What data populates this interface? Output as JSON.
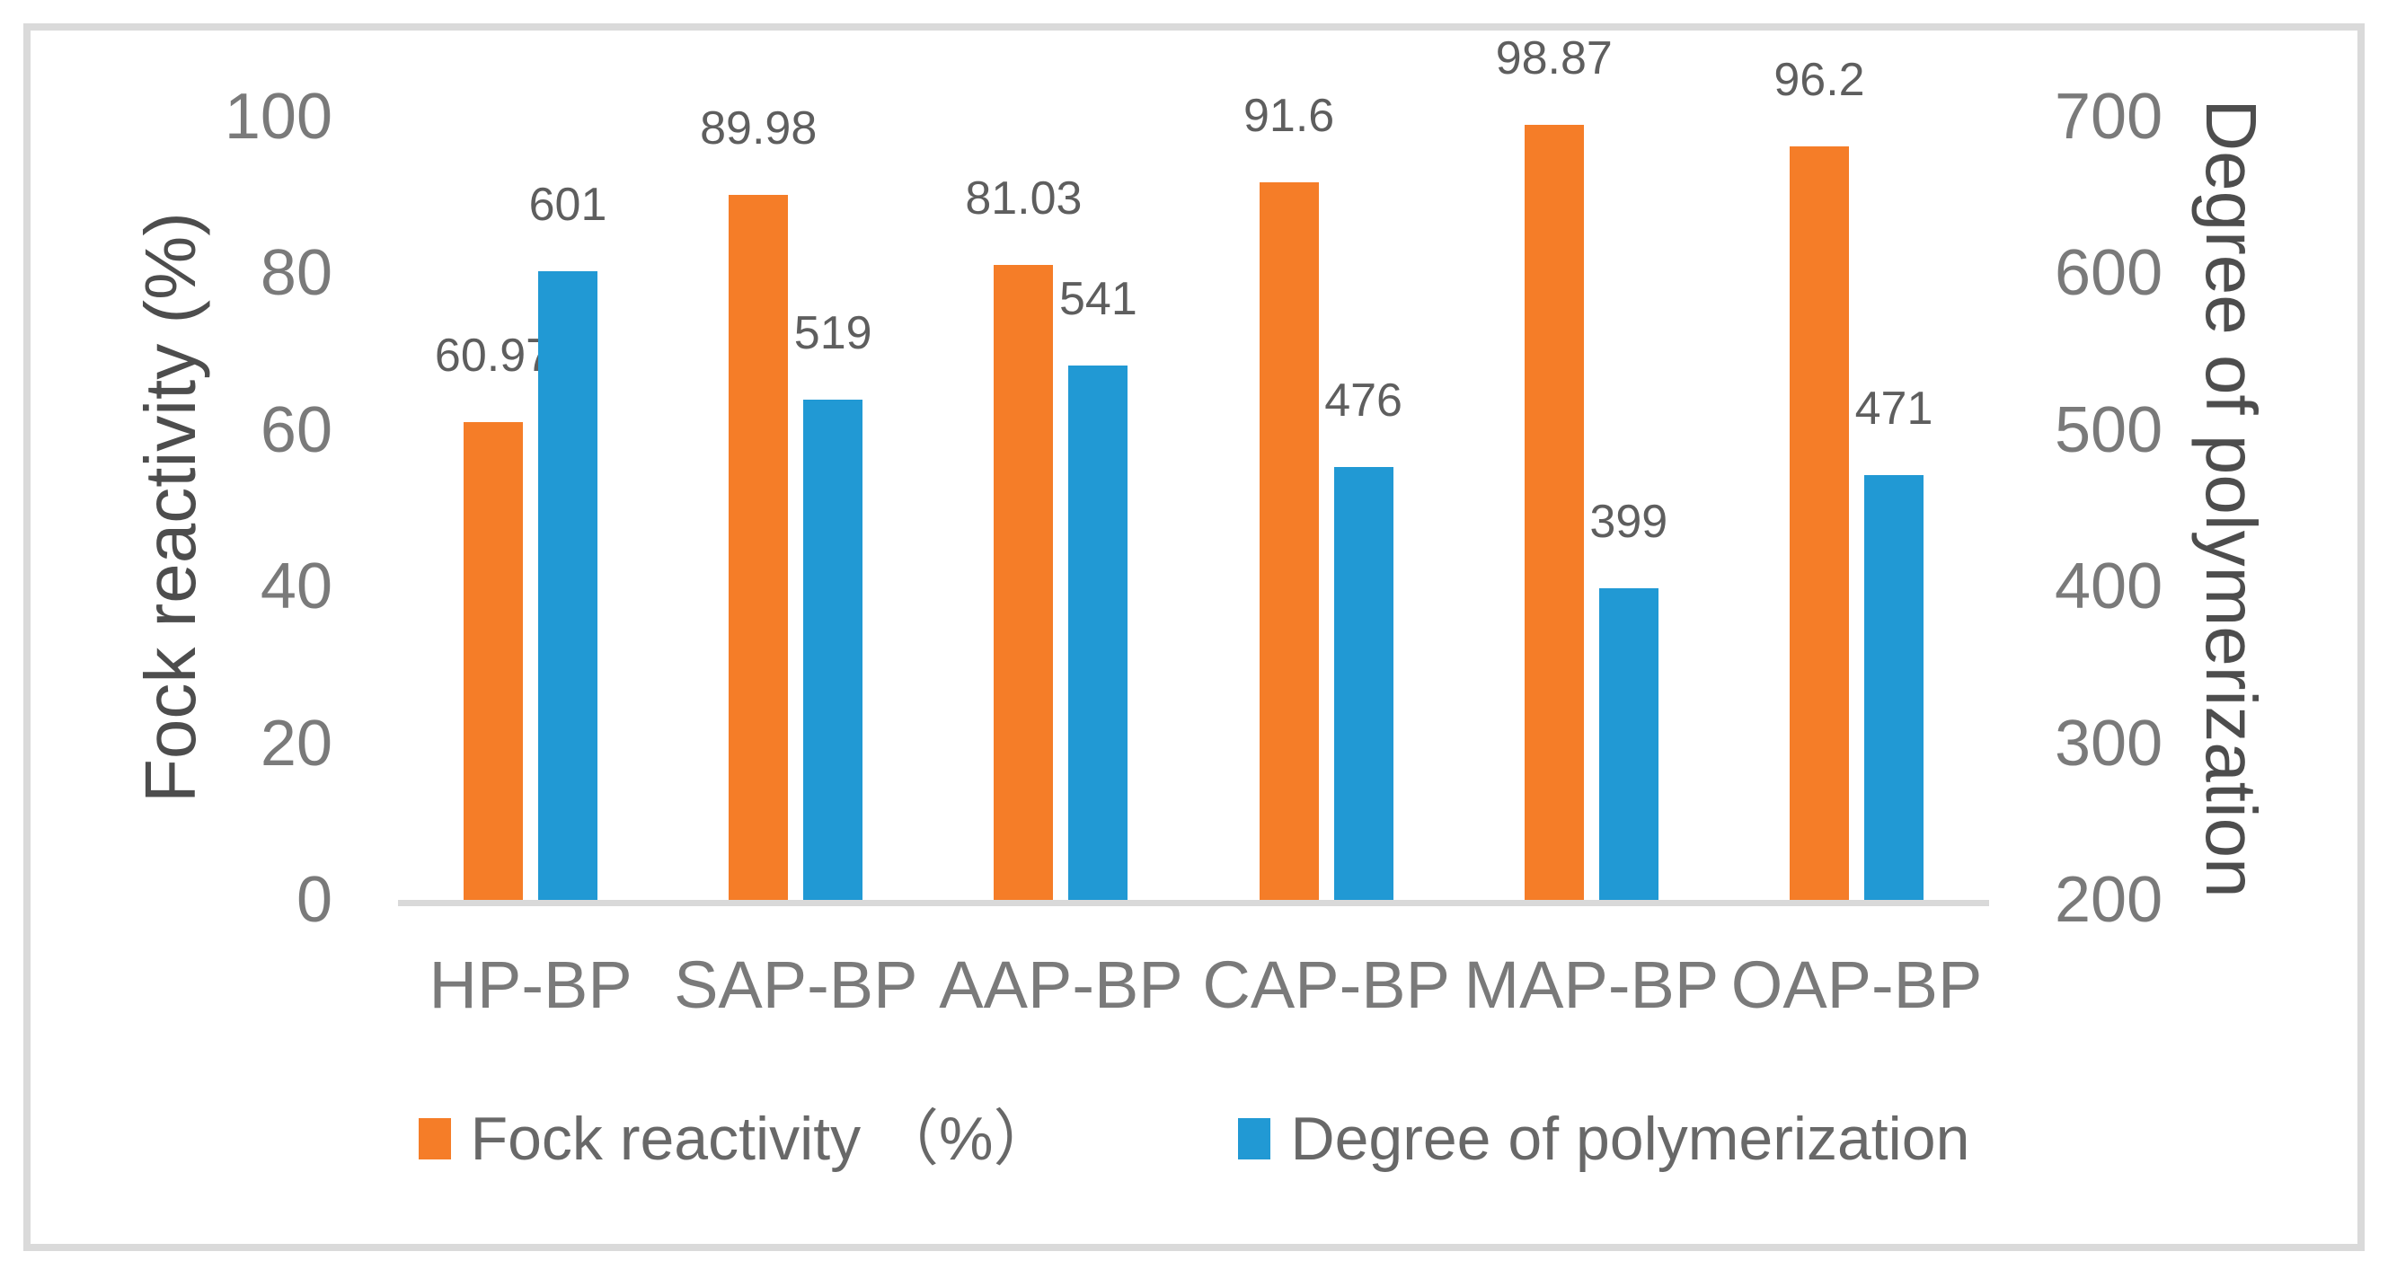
{
  "figure": {
    "background": "#ffffff",
    "border_color": "#DADADA",
    "axis_line_color": "#D9D9D9"
  },
  "chart_data": {
    "type": "bar",
    "title": "",
    "categories": [
      "HP-BP",
      "SAP-BP",
      "AAP-BP",
      "CAP-BP",
      "MAP-BP",
      "OAP-BP"
    ],
    "series": [
      {
        "name": "Fock reactivity （%）",
        "axis": "left",
        "color": "#F57D28",
        "values": [
          60.97,
          89.98,
          81.03,
          91.6,
          98.87,
          96.2
        ],
        "data_labels": [
          "60.97",
          "89.98",
          "81.03",
          "91.6",
          "98.87",
          "96.2"
        ]
      },
      {
        "name": "Degree of polymerization",
        "axis": "right",
        "color": "#2199D4",
        "values": [
          601,
          519,
          541,
          476,
          399,
          471
        ],
        "data_labels": [
          "601",
          "519",
          "541",
          "476",
          "399",
          "471"
        ]
      }
    ],
    "left_axis": {
      "title": "Fock reactivity (%)",
      "ticks": [
        0,
        20,
        40,
        60,
        80,
        100
      ],
      "range": [
        0,
        100
      ]
    },
    "right_axis": {
      "title": "Degree of polymerization",
      "ticks": [
        200,
        300,
        400,
        500,
        600,
        700
      ],
      "range": [
        200,
        700
      ]
    },
    "legend": {
      "position": "bottom",
      "items": [
        {
          "label": "Fock reactivity （%）",
          "color": "#F57D28"
        },
        {
          "label": "Degree of polymerization",
          "color": "#2199D4"
        }
      ]
    },
    "grid": false
  }
}
